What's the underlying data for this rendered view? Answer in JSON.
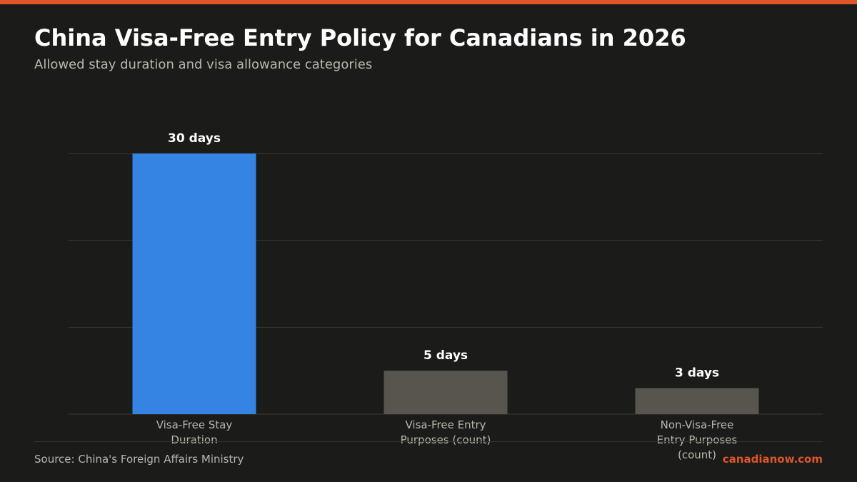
{
  "colors": {
    "accent": "#e0552a",
    "highlight_bar": "#3584e4",
    "muted_bar": "#57554e",
    "background": "#1b1b19"
  },
  "footer": {
    "source": "Source: China's Foreign Affairs Ministry",
    "brand": "canadianow.com"
  },
  "chart_data": {
    "type": "bar",
    "title": "China Visa-Free Entry Policy for Canadians in 2026",
    "subtitle": "Allowed stay duration and visa allowance categories",
    "categories": [
      [
        "Visa-Free Stay",
        "Duration"
      ],
      [
        "Visa-Free Entry",
        "Purposes (count)"
      ],
      [
        "Non-Visa-Free",
        "Entry Purposes",
        "(count)"
      ]
    ],
    "values": [
      30,
      5,
      3
    ],
    "value_labels": [
      "30 days",
      "5 days",
      "3 days"
    ],
    "ylim": [
      0,
      30
    ],
    "grid": true,
    "highlight_index": 0
  }
}
